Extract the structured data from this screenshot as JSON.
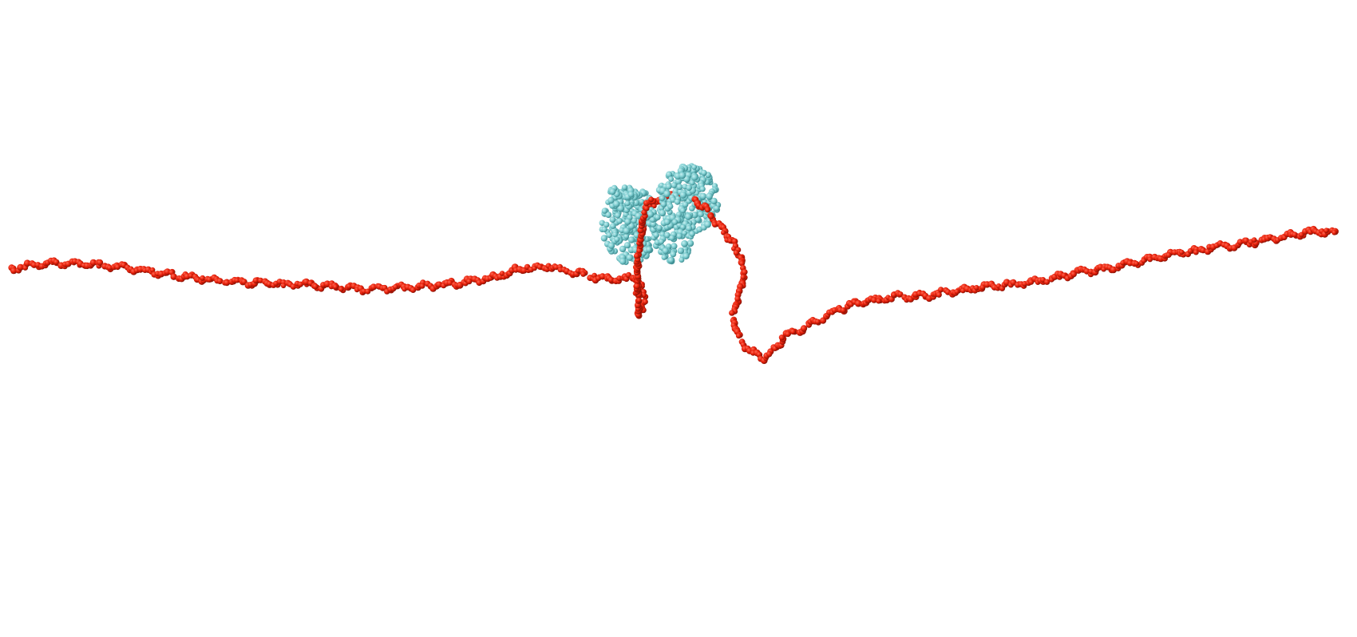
{
  "scene": {
    "background": "#ffffff",
    "strand": {
      "color": "#e8200a",
      "shade": "#8a1205",
      "highlight": "#ff6a55"
    },
    "protein": {
      "color": "#7ecdd0",
      "shade": "#3f8f93",
      "highlight": "#c8f0f1"
    }
  }
}
